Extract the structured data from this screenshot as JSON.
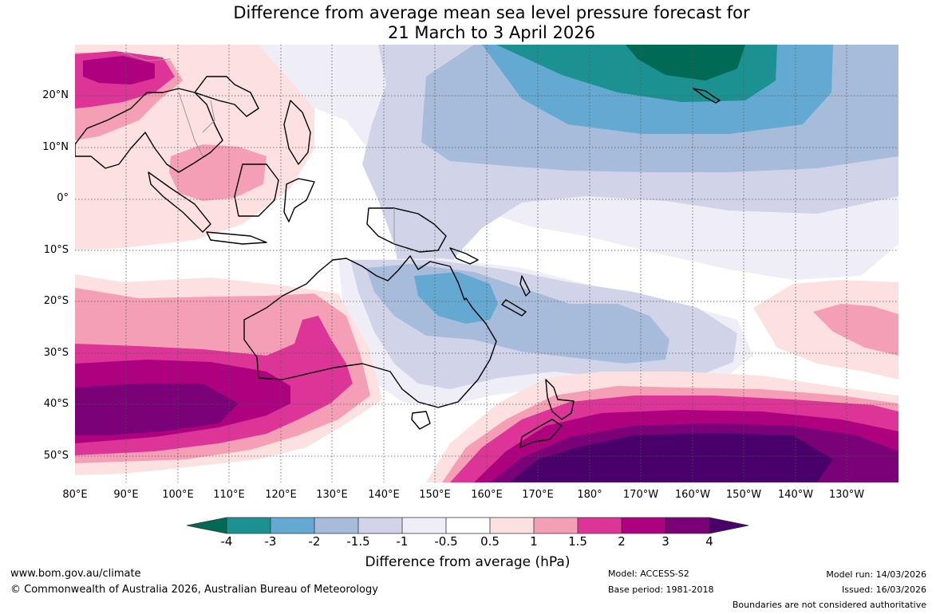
{
  "title": {
    "line1": "Difference from average mean sea level pressure forecast for",
    "line2": "21 March to 3 April 2026"
  },
  "axes": {
    "lat_labels": [
      "20°N",
      "10°N",
      "0°",
      "10°S",
      "20°S",
      "30°S",
      "40°S",
      "50°S"
    ],
    "lon_labels": [
      "80°E",
      "90°E",
      "100°E",
      "110°E",
      "120°E",
      "130°E",
      "140°E",
      "150°E",
      "160°E",
      "170°E",
      "180°",
      "170°W",
      "160°W",
      "150°W",
      "140°W",
      "130°W"
    ]
  },
  "colorbar": {
    "ticks": [
      "-4",
      "-3",
      "-2",
      "-1.5",
      "-1",
      "-0.5",
      "0.5",
      "1",
      "1.5",
      "2",
      "3",
      "4"
    ],
    "colors": [
      "#006a55",
      "#1b9192",
      "#64a9d2",
      "#a7bcdb",
      "#d1d3e9",
      "#efeef6",
      "#ffffff",
      "#fde0e0",
      "#f59fb6",
      "#dd3497",
      "#ad0180",
      "#7a0177",
      "#49006a"
    ],
    "label": "Difference from average (hPa)"
  },
  "footer": {
    "website": "www.bom.gov.au/climate",
    "copyright": "© Commonwealth of Australia 2026, Australian Bureau of Meteorology",
    "model": "Model: ACCESS-S2",
    "base_period": "Base period: 1981-2018",
    "model_run": "Model run: 14/03/2026",
    "issued": "Issued: 16/03/2026",
    "disclaimer": "Boundaries are not considered authoritative"
  }
}
